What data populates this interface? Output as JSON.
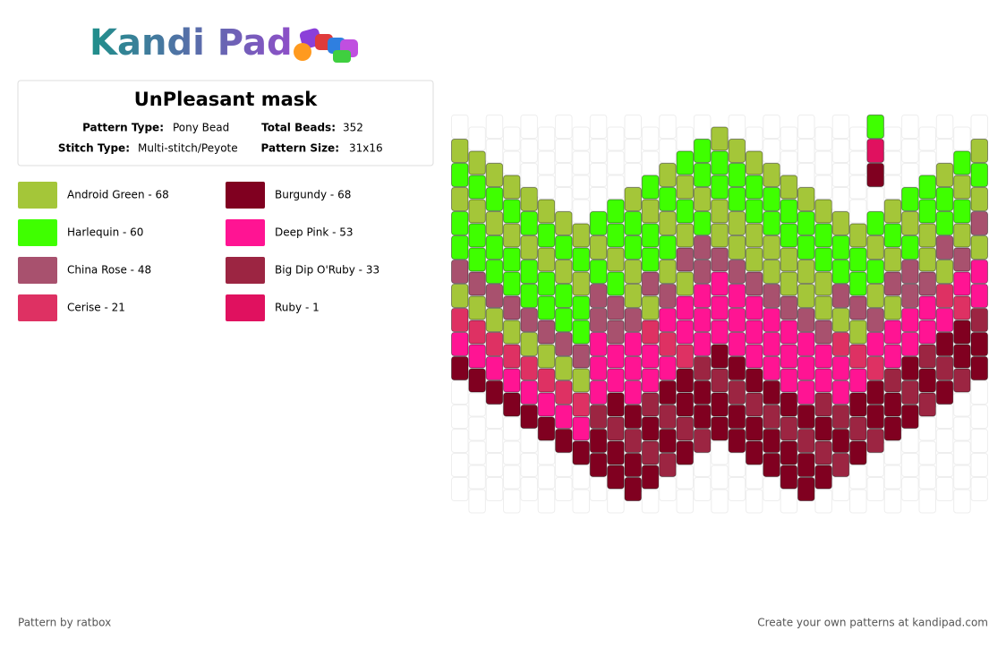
{
  "header": {
    "logo": "Kandi Pad",
    "title": "UnPleasant mask",
    "details": [
      {
        "label": "Pattern Type:",
        "value": "Pony Bead"
      },
      {
        "label": "Total Beads:",
        "value": 352
      },
      {
        "label": "Stitch Type:",
        "value": "Multi-stitch/Peyote"
      },
      {
        "label": "Pattern Size:",
        "value": "31x16"
      }
    ]
  },
  "legend": [
    {
      "label": "Android Green - 68",
      "color": "#a4c639"
    },
    {
      "label": "Burgundy - 68",
      "color": "#800020"
    },
    {
      "label": "Harlequin - 60",
      "color": "#3fff00"
    },
    {
      "label": "Deep Pink - 53",
      "color": "#ff1493"
    },
    {
      "label": "China Rose - 48",
      "color": "#a8516e"
    },
    {
      "label": "Big Dip O'Ruby - 33",
      "color": "#9c2542"
    },
    {
      "label": "Cerise - 21",
      "color": "#de3163"
    },
    {
      "label": "Ruby - 1",
      "color": "#e0115f"
    }
  ],
  "footer": {
    "credit": "Pattern by ratbox",
    "link": "Create your own patterns at kandipad.com"
  }
}
